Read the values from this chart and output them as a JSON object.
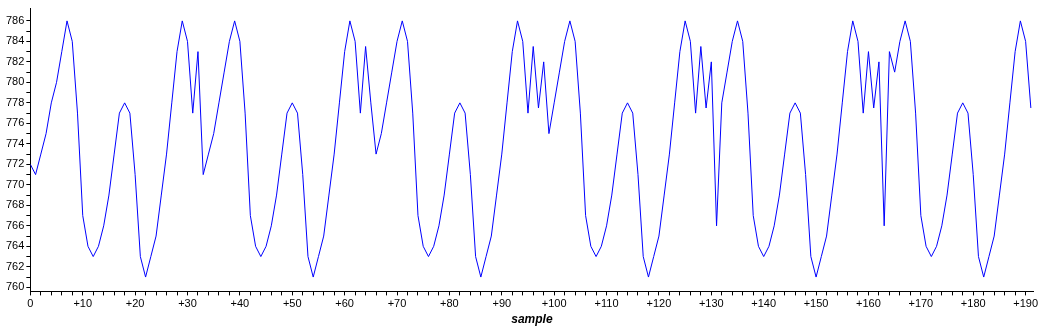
{
  "chart_data": {
    "type": "line",
    "xlabel": "sample",
    "x": [
      0,
      1,
      2,
      3,
      4,
      5,
      6,
      7,
      8,
      9,
      10,
      11,
      12,
      13,
      14,
      15,
      16,
      17,
      18,
      19,
      20,
      21,
      22,
      23,
      24,
      25,
      26,
      27,
      28,
      29,
      30,
      31,
      32,
      33,
      34,
      35,
      36,
      37,
      38,
      39,
      40,
      41,
      42,
      43,
      44,
      45,
      46,
      47,
      48,
      49,
      50,
      51,
      52,
      53,
      54,
      55,
      56,
      57,
      58,
      59,
      60,
      61,
      62,
      63,
      64,
      65,
      66,
      67,
      68,
      69,
      70,
      71,
      72,
      73,
      74,
      75,
      76,
      77,
      78,
      79,
      80,
      81,
      82,
      83,
      84,
      85,
      86,
      87,
      88,
      89,
      90,
      91,
      92,
      93,
      94,
      95,
      96,
      97,
      98,
      99,
      100,
      101,
      102,
      103,
      104,
      105,
      106,
      107,
      108,
      109,
      110,
      111,
      112,
      113,
      114,
      115,
      116,
      117,
      118,
      119,
      120,
      121,
      122,
      123,
      124,
      125,
      126,
      127,
      128,
      129,
      130,
      131,
      132,
      133,
      134,
      135,
      136,
      137,
      138,
      139,
      140,
      141,
      142,
      143,
      144,
      145,
      146,
      147,
      148,
      149,
      150,
      151,
      152,
      153,
      154,
      155,
      156,
      157,
      158,
      159,
      160,
      161,
      162,
      163,
      164,
      165,
      166,
      167,
      168,
      169,
      170,
      171,
      172,
      173,
      174,
      175,
      176,
      177,
      178,
      179,
      180,
      181,
      182,
      183,
      184,
      185,
      186,
      187,
      188,
      189,
      190,
      191
    ],
    "series": [
      {
        "color": "#0000ff",
        "values": [
          772,
          771,
          773,
          775,
          778,
          780,
          783,
          786,
          784,
          777,
          767,
          764,
          763,
          764,
          766,
          769,
          773,
          777,
          778,
          777,
          771,
          763,
          761,
          763,
          765,
          769,
          773,
          778,
          783,
          786,
          784,
          777,
          783,
          771,
          773,
          775,
          778,
          781,
          784,
          786,
          784,
          777,
          767,
          764,
          763,
          764,
          766,
          769,
          773,
          777,
          778,
          777,
          771,
          763,
          761,
          763,
          765,
          769,
          773,
          778,
          783,
          786,
          784,
          777,
          783.5,
          778,
          773,
          775,
          778,
          781,
          784,
          786,
          784,
          777,
          767,
          764,
          763,
          764,
          766,
          769,
          773,
          777,
          778,
          777,
          771,
          763,
          761,
          763,
          765,
          769,
          773,
          778,
          783,
          786,
          784,
          777,
          783.5,
          777.5,
          782,
          775,
          778,
          781,
          784,
          786,
          784,
          777,
          767,
          764,
          763,
          764,
          766,
          769,
          773,
          777,
          778,
          777,
          771,
          763,
          761,
          763,
          765,
          769,
          773,
          778,
          783,
          786,
          784,
          777,
          783.5,
          777.5,
          782,
          766,
          778,
          781,
          784,
          786,
          784,
          777,
          767,
          764,
          763,
          764,
          766,
          769,
          773,
          777,
          778,
          777,
          771,
          763,
          761,
          763,
          765,
          769,
          773,
          778,
          783,
          786,
          784,
          777,
          783,
          777.5,
          782,
          766,
          783,
          781,
          784,
          786,
          784,
          777,
          767,
          764,
          763,
          764,
          766,
          769,
          773,
          777,
          778,
          777,
          771,
          763,
          761,
          763,
          765,
          769,
          773,
          778,
          783,
          786,
          784,
          777.5
        ]
      }
    ],
    "xlim": [
      0,
      191.5
    ],
    "ylim": [
      759.6,
      787.2
    ],
    "xticks": [
      0,
      {
        "value": 2,
        "label": null
      },
      {
        "value": 4,
        "label": null
      },
      {
        "value": 6,
        "label": null
      },
      {
        "value": 8,
        "label": null
      },
      {
        "value": 10,
        "label": "+10"
      },
      {
        "value": 12,
        "label": null
      },
      {
        "value": 14,
        "label": null
      },
      {
        "value": 16,
        "label": null
      },
      {
        "value": 18,
        "label": null
      },
      {
        "value": 20,
        "label": "+20"
      },
      {
        "value": 22,
        "label": null
      },
      {
        "value": 24,
        "label": null
      },
      {
        "value": 26,
        "label": null
      },
      {
        "value": 28,
        "label": null
      },
      {
        "value": 30,
        "label": "+30"
      },
      {
        "value": 32,
        "label": null
      },
      {
        "value": 34,
        "label": null
      },
      {
        "value": 36,
        "label": null
      },
      {
        "value": 38,
        "label": null
      },
      {
        "value": 40,
        "label": "+40"
      },
      {
        "value": 42,
        "label": null
      },
      {
        "value": 44,
        "label": null
      },
      {
        "value": 46,
        "label": null
      },
      {
        "value": 48,
        "label": null
      },
      {
        "value": 50,
        "label": "+50"
      },
      {
        "value": 52,
        "label": null
      },
      {
        "value": 54,
        "label": null
      },
      {
        "value": 56,
        "label": null
      },
      {
        "value": 58,
        "label": null
      },
      {
        "value": 60,
        "label": "+60"
      },
      {
        "value": 62,
        "label": null
      },
      {
        "value": 64,
        "label": null
      },
      {
        "value": 66,
        "label": null
      },
      {
        "value": 68,
        "label": null
      },
      {
        "value": 70,
        "label": "+70"
      },
      {
        "value": 72,
        "label": null
      },
      {
        "value": 74,
        "label": null
      },
      {
        "value": 76,
        "label": null
      },
      {
        "value": 78,
        "label": null
      },
      {
        "value": 80,
        "label": "+80"
      },
      {
        "value": 82,
        "label": null
      },
      {
        "value": 84,
        "label": null
      },
      {
        "value": 86,
        "label": null
      },
      {
        "value": 88,
        "label": null
      },
      {
        "value": 90,
        "label": "+90"
      },
      {
        "value": 92,
        "label": null
      },
      {
        "value": 94,
        "label": null
      },
      {
        "value": 96,
        "label": null
      },
      {
        "value": 98,
        "label": null
      },
      {
        "value": 100,
        "label": "+100"
      },
      {
        "value": 102,
        "label": null
      },
      {
        "value": 104,
        "label": null
      },
      {
        "value": 106,
        "label": null
      },
      {
        "value": 108,
        "label": null
      },
      {
        "value": 110,
        "label": "+110"
      },
      {
        "value": 112,
        "label": null
      },
      {
        "value": 114,
        "label": null
      },
      {
        "value": 116,
        "label": null
      },
      {
        "value": 118,
        "label": null
      },
      {
        "value": 120,
        "label": "+120"
      },
      {
        "value": 122,
        "label": null
      },
      {
        "value": 124,
        "label": null
      },
      {
        "value": 126,
        "label": null
      },
      {
        "value": 128,
        "label": null
      },
      {
        "value": 130,
        "label": "+130"
      },
      {
        "value": 132,
        "label": null
      },
      {
        "value": 134,
        "label": null
      },
      {
        "value": 136,
        "label": null
      },
      {
        "value": 138,
        "label": null
      },
      {
        "value": 140,
        "label": "+140"
      },
      {
        "value": 142,
        "label": null
      },
      {
        "value": 144,
        "label": null
      },
      {
        "value": 146,
        "label": null
      },
      {
        "value": 148,
        "label": null
      },
      {
        "value": 150,
        "label": "+150"
      },
      {
        "value": 152,
        "label": null
      },
      {
        "value": 154,
        "label": null
      },
      {
        "value": 156,
        "label": null
      },
      {
        "value": 158,
        "label": null
      },
      {
        "value": 160,
        "label": "+160"
      },
      {
        "value": 162,
        "label": null
      },
      {
        "value": 164,
        "label": null
      },
      {
        "value": 166,
        "label": null
      },
      {
        "value": 168,
        "label": null
      },
      {
        "value": 170,
        "label": "+170"
      },
      {
        "value": 172,
        "label": null
      },
      {
        "value": 174,
        "label": null
      },
      {
        "value": 176,
        "label": null
      },
      {
        "value": 178,
        "label": null
      },
      {
        "value": 180,
        "label": "+180"
      },
      {
        "value": 182,
        "label": null
      },
      {
        "value": 184,
        "label": null
      },
      {
        "value": 186,
        "label": null
      },
      {
        "value": 188,
        "label": null
      },
      {
        "value": 190,
        "label": "+190"
      }
    ],
    "yticks": [
      760,
      {
        "value": 761,
        "label": null
      },
      762,
      {
        "value": 763,
        "label": null
      },
      764,
      {
        "value": 765,
        "label": null
      },
      766,
      {
        "value": 767,
        "label": null
      },
      768,
      {
        "value": 769,
        "label": null
      },
      770,
      {
        "value": 771,
        "label": null
      },
      772,
      {
        "value": 773,
        "label": null
      },
      774,
      {
        "value": 775,
        "label": null
      },
      776,
      {
        "value": 777,
        "label": null
      },
      778,
      {
        "value": 779,
        "label": null
      },
      780,
      {
        "value": 781,
        "label": null
      },
      782,
      {
        "value": 783,
        "label": null
      },
      784,
      {
        "value": 785,
        "label": null
      },
      786
    ],
    "grid": false,
    "legend": false,
    "marker": "none",
    "line_style": "solid"
  }
}
